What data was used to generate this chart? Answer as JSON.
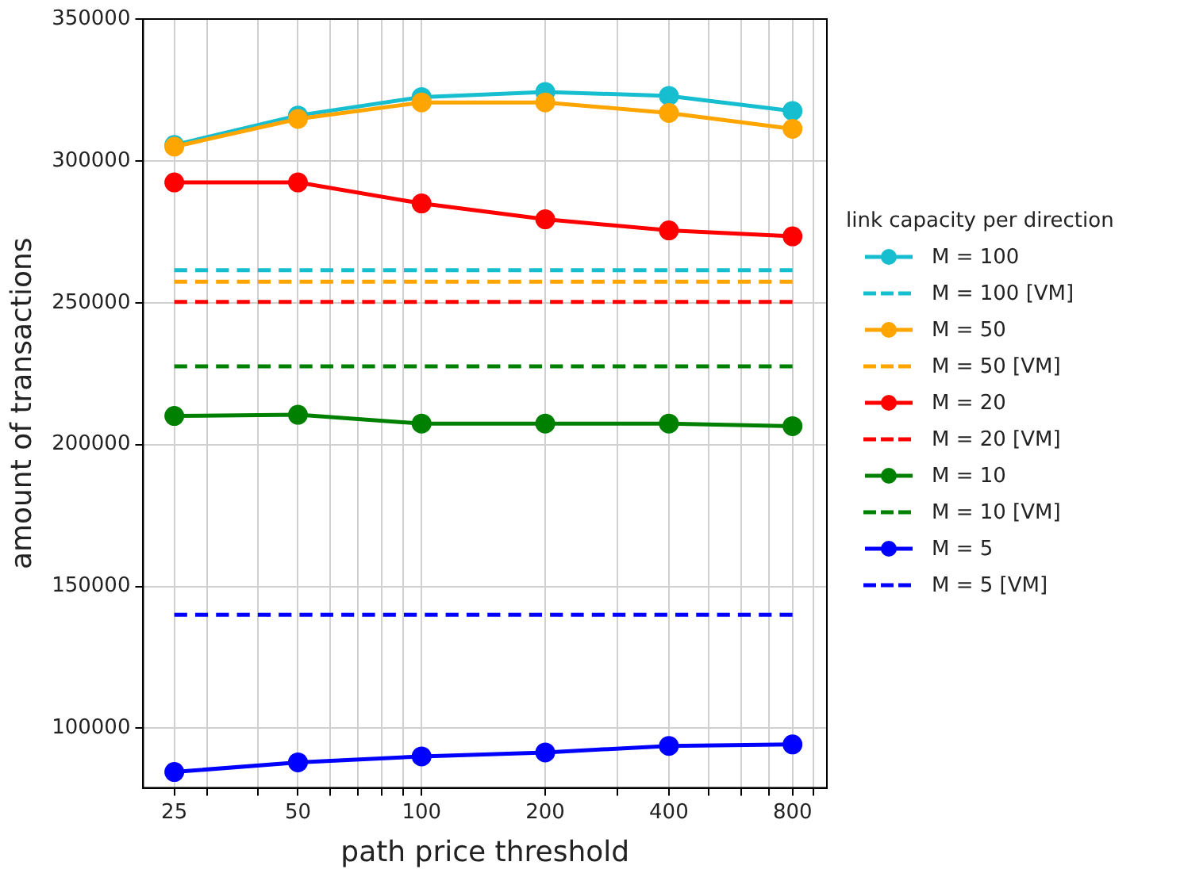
{
  "chart_data": {
    "type": "line",
    "xlabel": "path price threshold",
    "ylabel": "amount of transactions",
    "legend_title": "link capacity per direction",
    "x": [
      25,
      50,
      100,
      200,
      400,
      800
    ],
    "series": [
      {
        "name": "M = 100",
        "color": "#17becf",
        "values": [
          305600,
          316000,
          322500,
          324300,
          322900,
          317600
        ],
        "marker": "circle",
        "line_style": "solid"
      },
      {
        "name": "M = 100 [VM]",
        "color": "#17becf",
        "values": [
          261500,
          261500,
          261500,
          261500,
          261500,
          261500
        ],
        "marker": "none",
        "line_style": "dashed"
      },
      {
        "name": "M = 50",
        "color": "#ffa500",
        "values": [
          305000,
          314800,
          320600,
          320600,
          316900,
          311300
        ],
        "marker": "circle",
        "line_style": "solid"
      },
      {
        "name": "M = 50 [VM]",
        "color": "#ffa500",
        "values": [
          257400,
          257400,
          257400,
          257400,
          257400,
          257400
        ],
        "marker": "none",
        "line_style": "dashed"
      },
      {
        "name": "M = 20",
        "color": "#ff0000",
        "values": [
          292400,
          292400,
          285000,
          279400,
          275500,
          273400
        ],
        "marker": "circle",
        "line_style": "solid"
      },
      {
        "name": "M = 20 [VM]",
        "color": "#ff0000",
        "values": [
          250300,
          250300,
          250300,
          250300,
          250300,
          250300
        ],
        "marker": "none",
        "line_style": "dashed"
      },
      {
        "name": "M = 10",
        "color": "#008000",
        "values": [
          210100,
          210500,
          207400,
          207400,
          207400,
          206500
        ],
        "marker": "circle",
        "line_style": "solid"
      },
      {
        "name": "M = 10 [VM]",
        "color": "#008000",
        "values": [
          227600,
          227600,
          227600,
          227600,
          227600,
          227600
        ],
        "marker": "none",
        "line_style": "dashed"
      },
      {
        "name": "M = 5",
        "color": "#0000ff",
        "values": [
          84600,
          88000,
          90100,
          91500,
          93800,
          94300
        ],
        "marker": "circle",
        "line_style": "solid"
      },
      {
        "name": "M = 5 [VM]",
        "color": "#0000ff",
        "values": [
          140000,
          140000,
          140000,
          140000,
          140000,
          140000
        ],
        "marker": "none",
        "line_style": "dashed"
      }
    ],
    "log": "x",
    "xlim": [
      21,
      970
    ],
    "xticks": [
      25,
      {
        "value": 30,
        "label": null
      },
      {
        "value": 40,
        "label": null
      },
      50,
      {
        "value": 60,
        "label": null
      },
      {
        "value": 70,
        "label": null
      },
      {
        "value": 80,
        "label": null
      },
      {
        "value": 90,
        "label": null
      },
      100,
      200,
      {
        "value": 300,
        "label": null
      },
      400,
      {
        "value": 500,
        "label": null
      },
      {
        "value": 600,
        "label": null
      },
      {
        "value": 700,
        "label": null
      },
      800,
      {
        "value": 900,
        "label": null
      }
    ],
    "ylim": [
      79000,
      350000
    ],
    "yticks": [
      100000,
      150000,
      200000,
      250000,
      300000,
      350000
    ],
    "grid": true,
    "legend": "right"
  }
}
